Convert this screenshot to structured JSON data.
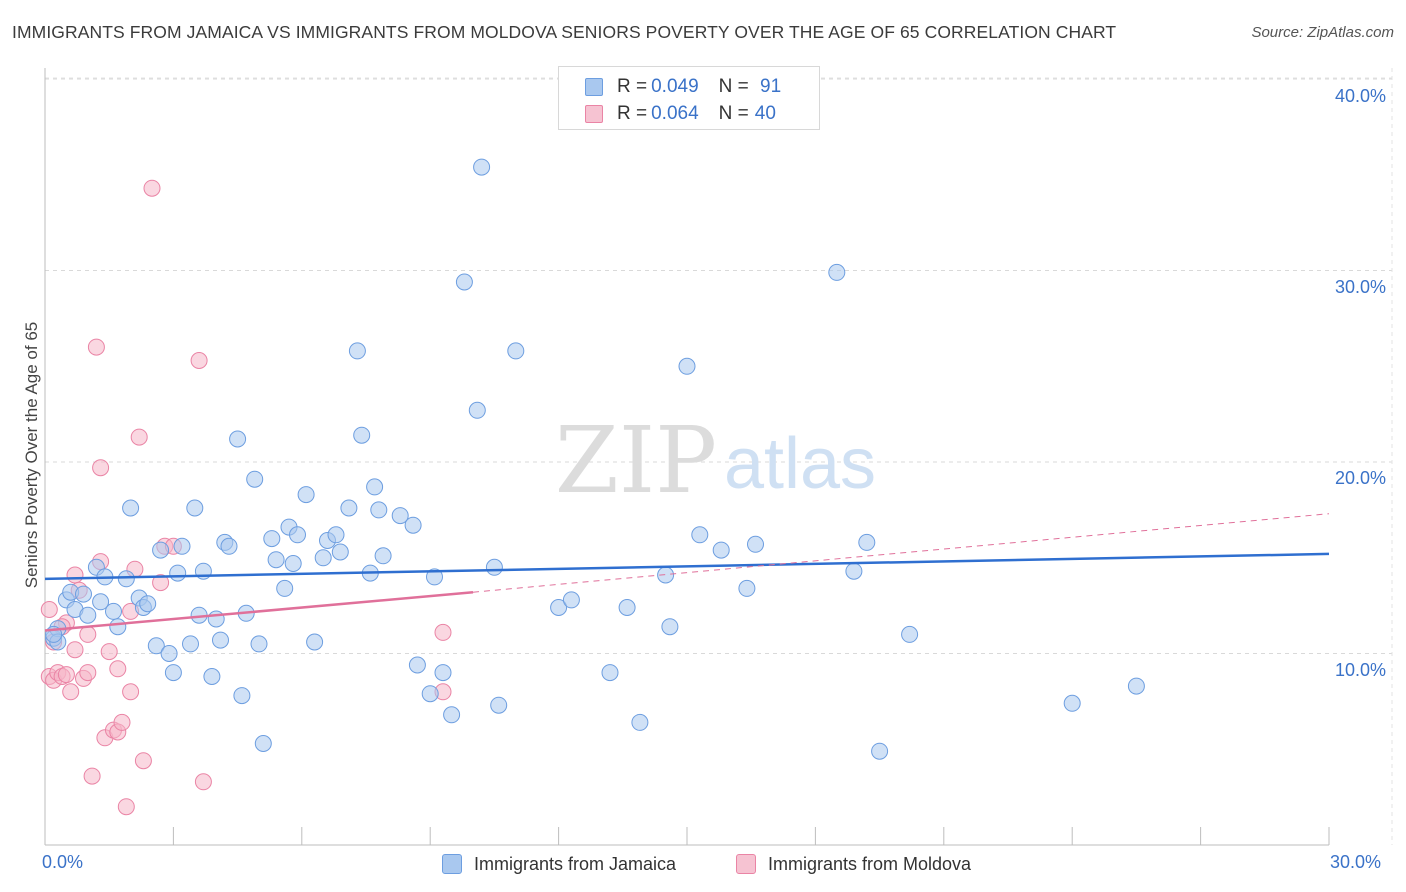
{
  "title": "IMMIGRANTS FROM JAMAICA VS IMMIGRANTS FROM MOLDOVA SENIORS POVERTY OVER THE AGE OF 65 CORRELATION CHART",
  "source": "Source: ZipAtlas.com",
  "watermark": {
    "zip": "ZIP",
    "atlas": "atlas"
  },
  "colors": {
    "jamaica_fill": "#a9c8ef",
    "jamaica_stroke": "#6d9ee0",
    "jamaica_line": "#2f6fd0",
    "moldova_fill": "#f6b6c9",
    "moldova_stroke": "#ea84a5",
    "moldova_line": "#e0709a",
    "accent_text": "#3a72c8"
  },
  "legend": {
    "jamaica": {
      "r_label": "R = ",
      "r_value": "0.049",
      "n_label": "N = ",
      "n_value": " 91"
    },
    "moldova": {
      "r_label": "R = ",
      "r_value": "0.064",
      "n_label": "N = ",
      "n_value": "40"
    }
  },
  "bottom_legend": {
    "jamaica": "Immigrants from Jamaica",
    "moldova": "Immigrants from Moldova"
  },
  "axes": {
    "ylabel": "Seniors Poverty Over the Age of 65",
    "x_min_label": "0.0%",
    "x_max_label": "30.0%",
    "y_tick_labels": [
      "40.0%",
      "30.0%",
      "20.0%",
      "10.0%"
    ]
  },
  "chart_data": {
    "type": "scatter",
    "title": "IMMIGRANTS FROM JAMAICA VS IMMIGRANTS FROM MOLDOVA SENIORS POVERTY OVER THE AGE OF 65 CORRELATION CHART",
    "xlabel": "",
    "ylabel": "Seniors Poverty Over the Age of 65",
    "xlim": [
      0,
      30
    ],
    "ylim": [
      0,
      40.5
    ],
    "yticks": [
      10,
      20,
      30,
      40
    ],
    "series": [
      {
        "name": "Immigrants from Jamaica",
        "r": 0.049,
        "n": 91,
        "trend": {
          "x0": 0,
          "y0": 13.9,
          "x1": 30,
          "y1": 15.2
        },
        "points": [
          [
            0.2,
            10.8
          ],
          [
            0.3,
            11.3
          ],
          [
            0.3,
            10.6
          ],
          [
            0.5,
            12.8
          ],
          [
            0.6,
            13.2
          ],
          [
            0.7,
            12.3
          ],
          [
            0.9,
            13.1
          ],
          [
            1.0,
            12.0
          ],
          [
            1.2,
            14.5
          ],
          [
            1.3,
            12.7
          ],
          [
            1.4,
            14.0
          ],
          [
            1.6,
            12.2
          ],
          [
            1.7,
            11.4
          ],
          [
            1.9,
            13.9
          ],
          [
            2.0,
            17.6
          ],
          [
            2.2,
            12.9
          ],
          [
            2.3,
            12.4
          ],
          [
            2.4,
            12.6
          ],
          [
            2.6,
            10.4
          ],
          [
            2.7,
            15.4
          ],
          [
            2.9,
            10.0
          ],
          [
            3.0,
            9.0
          ],
          [
            3.1,
            14.2
          ],
          [
            3.2,
            15.6
          ],
          [
            3.4,
            10.5
          ],
          [
            3.5,
            17.6
          ],
          [
            3.6,
            12.0
          ],
          [
            3.7,
            14.3
          ],
          [
            3.9,
            8.8
          ],
          [
            4.0,
            11.8
          ],
          [
            4.1,
            10.7
          ],
          [
            4.2,
            15.8
          ],
          [
            4.3,
            15.6
          ],
          [
            4.5,
            21.2
          ],
          [
            4.6,
            7.8
          ],
          [
            4.7,
            12.1
          ],
          [
            4.9,
            19.1
          ],
          [
            5.0,
            10.5
          ],
          [
            5.1,
            5.3
          ],
          [
            5.3,
            16.0
          ],
          [
            5.4,
            14.9
          ],
          [
            5.6,
            13.4
          ],
          [
            5.7,
            16.6
          ],
          [
            5.8,
            14.7
          ],
          [
            5.9,
            16.2
          ],
          [
            6.1,
            18.3
          ],
          [
            6.3,
            10.6
          ],
          [
            6.5,
            15.0
          ],
          [
            6.6,
            15.9
          ],
          [
            6.8,
            16.2
          ],
          [
            6.9,
            15.3
          ],
          [
            7.1,
            17.6
          ],
          [
            7.3,
            25.8
          ],
          [
            7.4,
            21.4
          ],
          [
            7.6,
            14.2
          ],
          [
            7.7,
            18.7
          ],
          [
            7.8,
            17.5
          ],
          [
            7.9,
            15.1
          ],
          [
            8.3,
            17.2
          ],
          [
            8.6,
            16.7
          ],
          [
            8.7,
            9.4
          ],
          [
            9.0,
            7.9
          ],
          [
            9.1,
            14.0
          ],
          [
            9.3,
            9.0
          ],
          [
            9.5,
            6.8
          ],
          [
            9.8,
            29.4
          ],
          [
            10.1,
            22.7
          ],
          [
            10.2,
            35.4
          ],
          [
            10.5,
            14.5
          ],
          [
            10.6,
            7.3
          ],
          [
            11.0,
            25.8
          ],
          [
            12.0,
            12.4
          ],
          [
            12.3,
            12.8
          ],
          [
            13.6,
            12.4
          ],
          [
            13.9,
            6.4
          ],
          [
            14.5,
            14.1
          ],
          [
            14.6,
            11.4
          ],
          [
            15.0,
            25.0
          ],
          [
            15.3,
            16.2
          ],
          [
            15.8,
            15.4
          ],
          [
            16.4,
            13.4
          ],
          [
            16.6,
            15.7
          ],
          [
            18.5,
            29.9
          ],
          [
            18.9,
            14.3
          ],
          [
            19.2,
            15.8
          ],
          [
            19.5,
            4.9
          ],
          [
            20.2,
            11.0
          ],
          [
            24.0,
            7.4
          ],
          [
            25.5,
            8.3
          ],
          [
            0.2,
            11.0
          ],
          [
            13.2,
            9.0
          ]
        ]
      },
      {
        "name": "Immigrants from Moldova",
        "r": 0.064,
        "n": 40,
        "trend": {
          "x0": 0,
          "y0": 11.2,
          "x1": 10,
          "y1": 13.2,
          "dashed_x1": 30,
          "dashed_y1": 17.3
        },
        "points": [
          [
            0.1,
            12.3
          ],
          [
            0.1,
            8.8
          ],
          [
            0.2,
            8.6
          ],
          [
            0.3,
            9.0
          ],
          [
            0.4,
            8.8
          ],
          [
            0.5,
            8.9
          ],
          [
            0.5,
            11.6
          ],
          [
            0.6,
            8.0
          ],
          [
            0.7,
            14.1
          ],
          [
            0.7,
            10.2
          ],
          [
            0.8,
            13.3
          ],
          [
            0.9,
            8.7
          ],
          [
            1.0,
            11.0
          ],
          [
            1.0,
            9.0
          ],
          [
            1.1,
            3.6
          ],
          [
            1.2,
            26.0
          ],
          [
            1.3,
            14.8
          ],
          [
            1.3,
            19.7
          ],
          [
            1.4,
            5.6
          ],
          [
            1.5,
            10.1
          ],
          [
            1.6,
            6.0
          ],
          [
            1.7,
            5.9
          ],
          [
            1.7,
            9.2
          ],
          [
            1.8,
            6.4
          ],
          [
            1.9,
            2.0
          ],
          [
            2.0,
            8.0
          ],
          [
            2.0,
            12.2
          ],
          [
            2.1,
            14.4
          ],
          [
            2.2,
            21.3
          ],
          [
            2.3,
            4.4
          ],
          [
            2.5,
            34.3
          ],
          [
            2.7,
            13.7
          ],
          [
            2.8,
            15.6
          ],
          [
            3.0,
            15.6
          ],
          [
            3.6,
            25.3
          ],
          [
            3.7,
            3.3
          ],
          [
            9.3,
            11.1
          ],
          [
            9.3,
            8.0
          ],
          [
            0.2,
            10.6
          ],
          [
            0.4,
            11.4
          ]
        ]
      }
    ]
  }
}
